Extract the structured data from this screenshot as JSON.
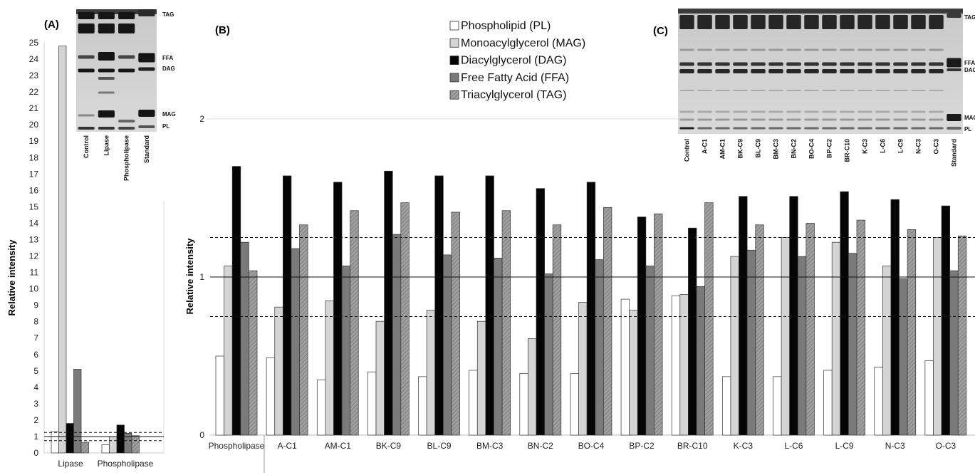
{
  "panels": {
    "A": {
      "label": "(A)",
      "chart_data": {
        "type": "bar",
        "ylabel": "Relative intensity",
        "ylim": [
          0,
          25
        ],
        "yticks": [
          0,
          1,
          2,
          3,
          4,
          5,
          6,
          7,
          8,
          9,
          10,
          11,
          12,
          13,
          14,
          15,
          16,
          17,
          18,
          19,
          20,
          21,
          22,
          23,
          24,
          25
        ],
        "categories": [
          "Lipase",
          "Phospholipase"
        ],
        "series": [
          {
            "name": "Phospholipid (PL)",
            "values": [
              1.3,
              0.5
            ]
          },
          {
            "name": "Monoacylglycerol (MAG)",
            "values": [
              24.8,
              1.0
            ]
          },
          {
            "name": "Diacylglycerol  (DAG)",
            "values": [
              1.8,
              1.7
            ]
          },
          {
            "name": "Free Fatty Acid (FFA)",
            "values": [
              5.1,
              1.2
            ]
          },
          {
            "name": "Triacylglycerol (TAG)",
            "values": [
              0.65,
              1.05
            ]
          }
        ],
        "reference_lines": {
          "solid": 1.0,
          "dashed": [
            0.75,
            1.25
          ]
        }
      },
      "gel": {
        "band_labels": [
          "TAG",
          "FFA",
          "DAG",
          "MAG",
          "PL"
        ],
        "lane_labels": [
          "Control",
          "Lipase",
          "Phospholipase",
          "Standard"
        ]
      }
    },
    "B": {
      "label": "(B)",
      "chart_data": {
        "type": "bar",
        "ylabel": "Relative intensity",
        "ylim": [
          0,
          2
        ],
        "yticks": [
          0,
          1,
          2
        ],
        "categories": [
          "Phospholipase",
          "A-C1",
          "AM-C1",
          "BK-C9",
          "BL-C9",
          "BM-C3",
          "BN-C2",
          "BO-C4",
          "BP-C2",
          "BR-C10",
          "K-C3",
          "L-C6",
          "L-C9",
          "N-C3",
          "O-C3"
        ],
        "series": [
          {
            "name": "Phospholipid (PL)",
            "values": [
              0.5,
              0.49,
              0.35,
              0.4,
              0.37,
              0.41,
              0.39,
              0.39,
              0.86,
              0.88,
              0.37,
              0.37,
              0.41,
              0.43,
              0.47
            ]
          },
          {
            "name": "Monoacylglycerol (MAG)",
            "values": [
              1.07,
              0.81,
              0.85,
              0.72,
              0.79,
              0.72,
              0.61,
              0.84,
              0.79,
              0.89,
              1.13,
              1.25,
              1.22,
              1.07,
              1.25
            ]
          },
          {
            "name": "Diacylglycerol  (DAG)",
            "values": [
              1.7,
              1.64,
              1.6,
              1.67,
              1.64,
              1.64,
              1.56,
              1.6,
              1.38,
              1.31,
              1.51,
              1.51,
              1.54,
              1.49,
              1.45
            ]
          },
          {
            "name": "Free Fatty Acid (FFA)",
            "values": [
              1.22,
              1.18,
              1.07,
              1.27,
              1.14,
              1.12,
              1.02,
              1.11,
              1.07,
              0.94,
              1.17,
              1.13,
              1.15,
              0.99,
              1.04
            ]
          },
          {
            "name": "Triacylglycerol (TAG)",
            "values": [
              1.04,
              1.33,
              1.42,
              1.47,
              1.41,
              1.42,
              1.33,
              1.44,
              1.4,
              1.47,
              1.33,
              1.34,
              1.36,
              1.3,
              1.26
            ]
          }
        ],
        "reference_lines": {
          "solid": 1.0,
          "dashed": [
            0.75,
            1.25
          ]
        },
        "legend_position": "top-center"
      }
    },
    "C": {
      "label": "(C)",
      "gel": {
        "band_labels": [
          "TAG",
          "FFA",
          "DAG",
          "MAG",
          "PL"
        ],
        "lane_labels": [
          "Control",
          "A-C1",
          "AM-C1",
          "BK-C9",
          "BL-C9",
          "BM-C3",
          "BN-C2",
          "BO-C4",
          "BP-C2",
          "BR-C10",
          "K-C3",
          "L-C6",
          "L-C9",
          "N-C3",
          "O-C3",
          "Standard"
        ]
      }
    }
  },
  "colors": {
    "pl": "#ffffff",
    "mag": "#d4d4d4",
    "dag": "#050505",
    "ffa": "#7a7a7a",
    "tag": "#999999"
  }
}
